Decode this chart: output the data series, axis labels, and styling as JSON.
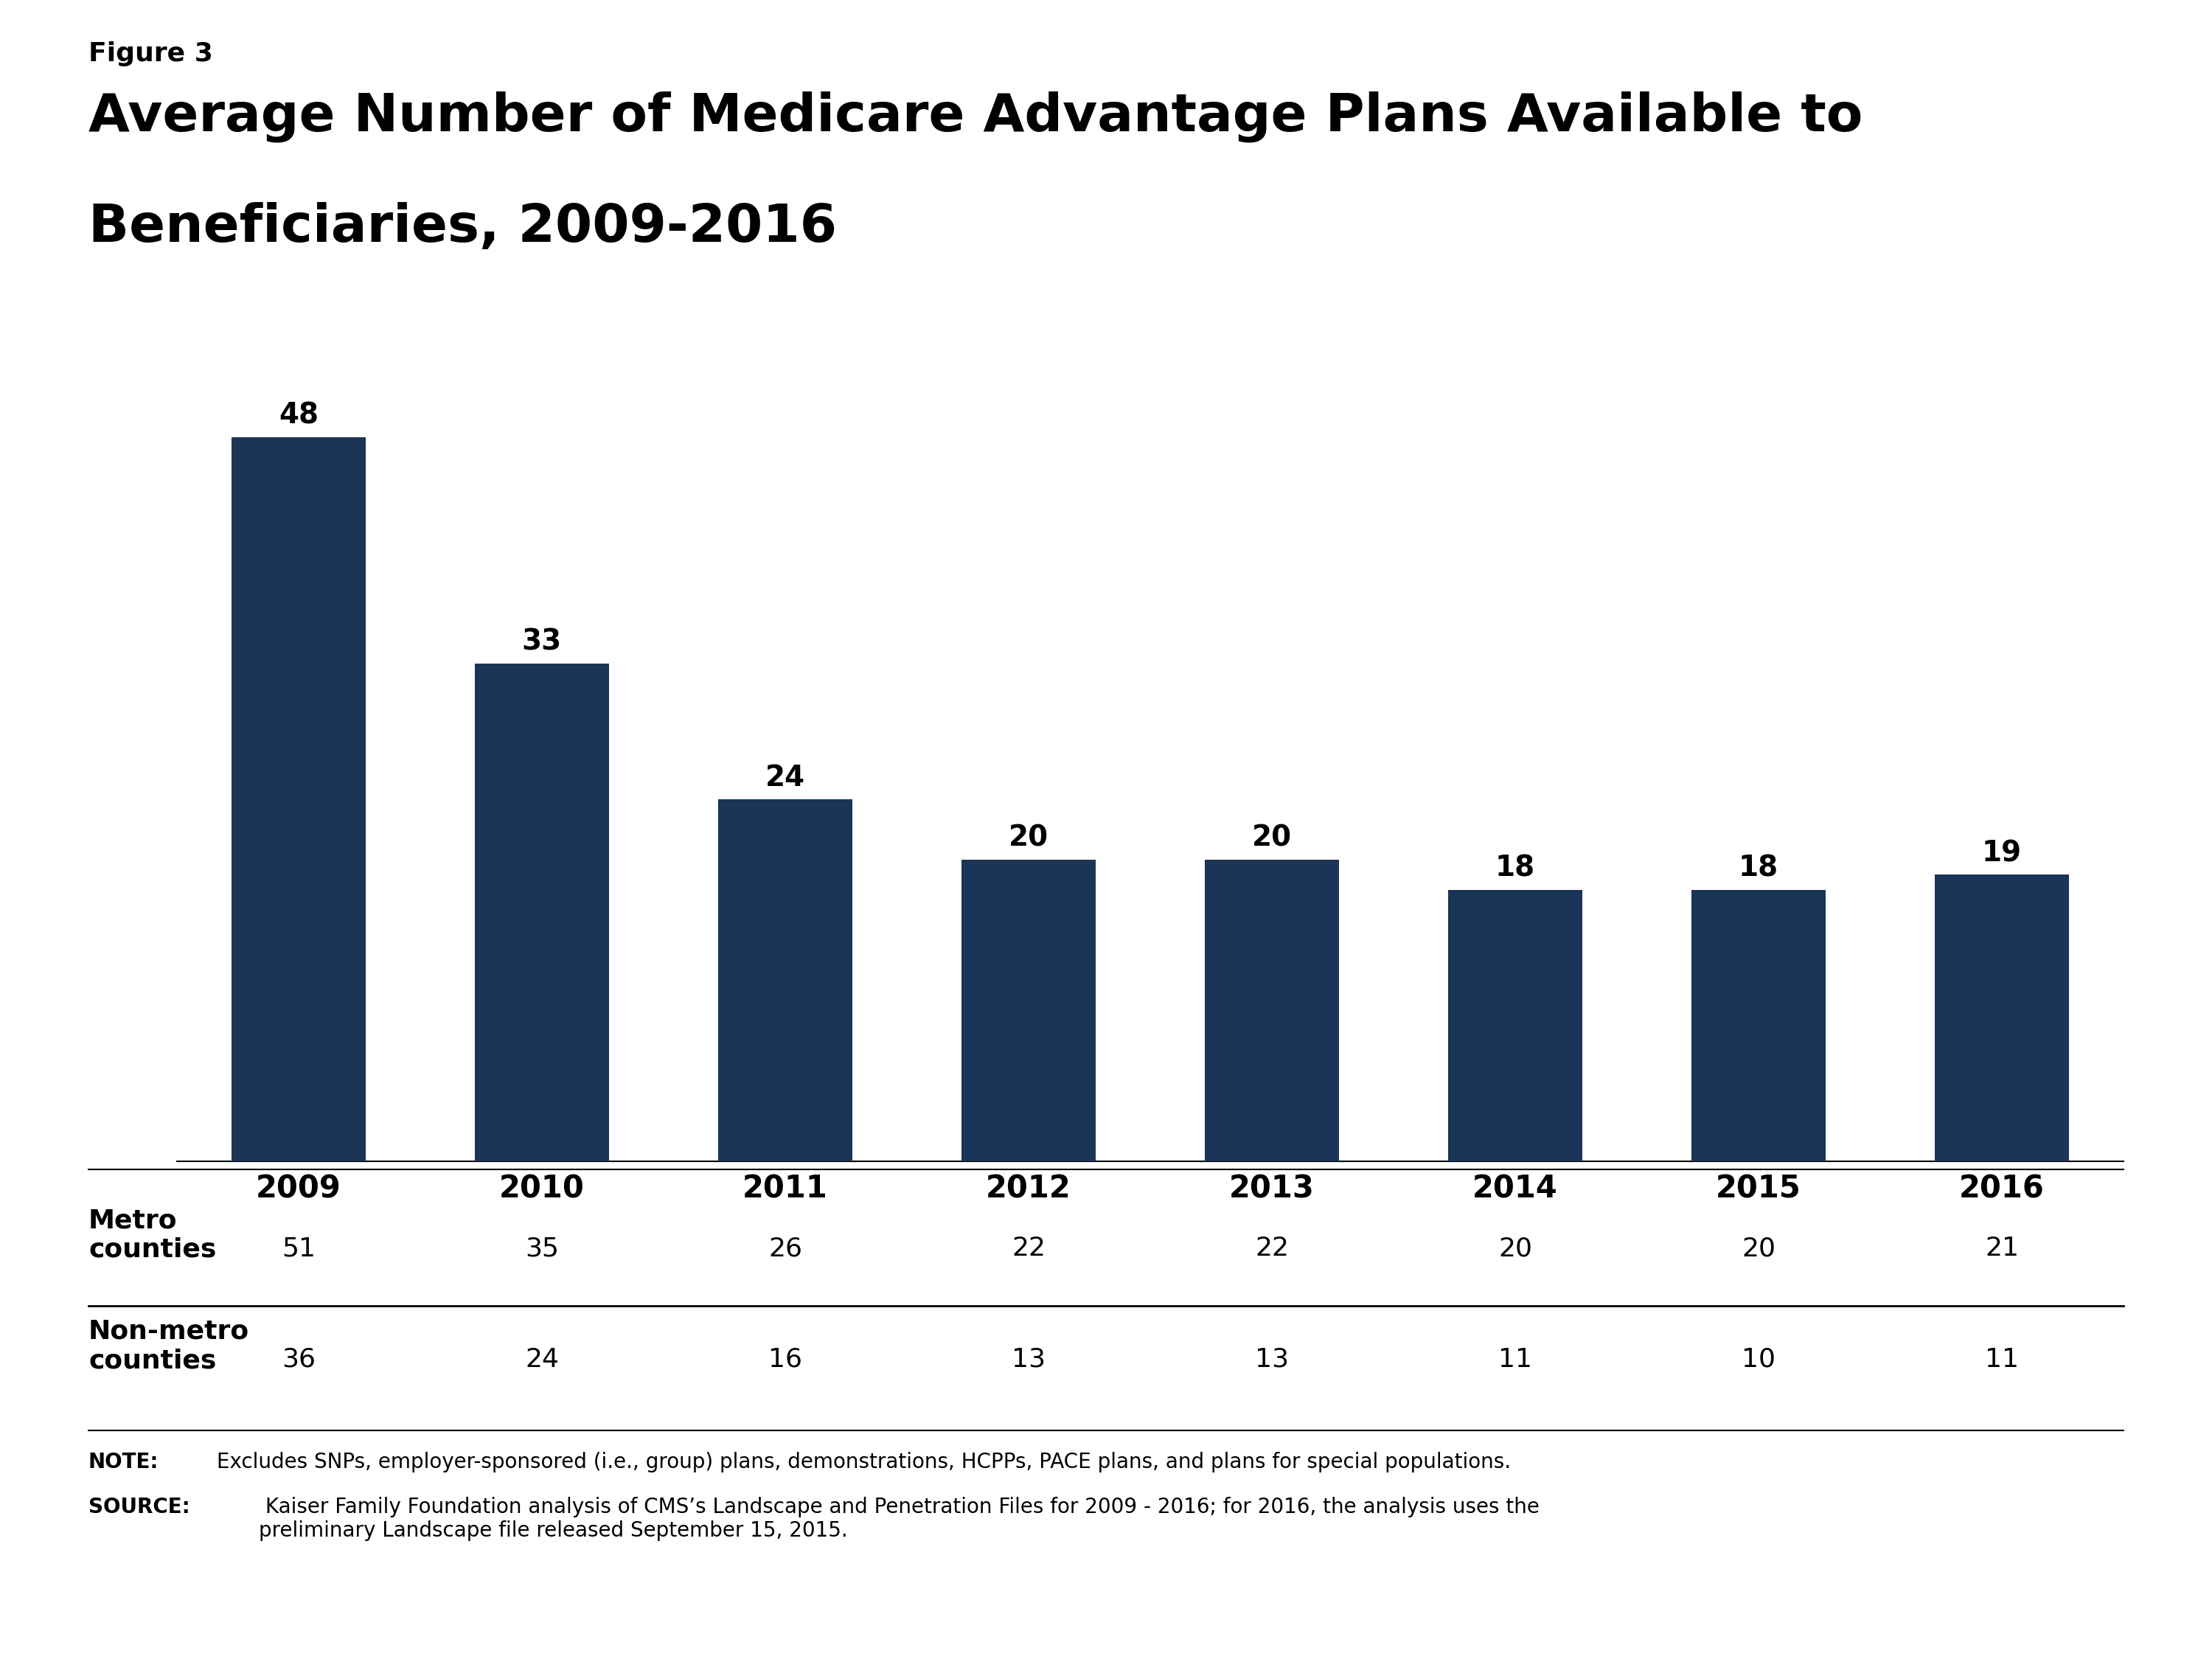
{
  "figure_label": "Figure 3",
  "title_line1": "Average Number of Medicare Advantage Plans Available to",
  "title_line2": "Beneficiaries, 2009-2016",
  "years": [
    "2009",
    "2010",
    "2011",
    "2012",
    "2013",
    "2014",
    "2015",
    "2016"
  ],
  "values": [
    48,
    33,
    24,
    20,
    20,
    18,
    18,
    19
  ],
  "bar_color": "#1a3557",
  "metro_label": "Metro\ncounties",
  "metro_values": [
    51,
    35,
    26,
    22,
    22,
    20,
    20,
    21
  ],
  "nonmetro_label": "Non-metro\ncounties",
  "nonmetro_values": [
    36,
    24,
    16,
    13,
    13,
    11,
    10,
    11
  ],
  "ylim": [
    0,
    55
  ],
  "note_bold": "NOTE:",
  "note_rest": " Excludes SNPs, employer-sponsored (i.e., group) plans, demonstrations, HCPPs, PACE plans, and plans for special populations.",
  "source_bold": "SOURCE:",
  "source_rest": " Kaiser Family Foundation analysis of CMS’s Landscape and Penetration Files for 2009 - 2016; for 2016, the analysis uses the\npreliminary Landscape file released September 15, 2015.",
  "kff_box_color": "#1a3557",
  "background_color": "#ffffff",
  "title_fontsize": 52,
  "figure_label_fontsize": 26,
  "bar_label_fontsize": 28,
  "xtick_fontsize": 30,
  "table_label_fontsize": 26,
  "table_value_fontsize": 26,
  "note_fontsize": 20
}
